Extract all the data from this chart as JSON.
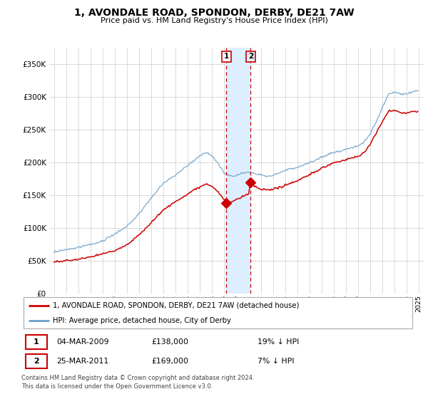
{
  "title": "1, AVONDALE ROAD, SPONDON, DERBY, DE21 7AW",
  "subtitle": "Price paid vs. HM Land Registry's House Price Index (HPI)",
  "legend_line1": "1, AVONDALE ROAD, SPONDON, DERBY, DE21 7AW (detached house)",
  "legend_line2": "HPI: Average price, detached house, City of Derby",
  "transaction1_date": "04-MAR-2009",
  "transaction1_price": "£138,000",
  "transaction1_hpi": "19% ↓ HPI",
  "transaction2_date": "25-MAR-2011",
  "transaction2_price": "£169,000",
  "transaction2_hpi": "7% ↓ HPI",
  "footer": "Contains HM Land Registry data © Crown copyright and database right 2024.\nThis data is licensed under the Open Government Licence v3.0.",
  "red_color": "#cc0000",
  "blue_color": "#6ca0c8",
  "shaded_region_color": "#ddeeff",
  "ylim": [
    0,
    370000
  ],
  "yticks": [
    0,
    50000,
    100000,
    150000,
    200000,
    250000,
    300000,
    350000
  ],
  "ytick_labels": [
    "£0",
    "£50K",
    "£100K",
    "£150K",
    "£200K",
    "£250K",
    "£300K",
    "£350K"
  ],
  "t1_year": 2009.17,
  "t2_year": 2011.17,
  "t1_price": 138000,
  "t2_price": 169000
}
